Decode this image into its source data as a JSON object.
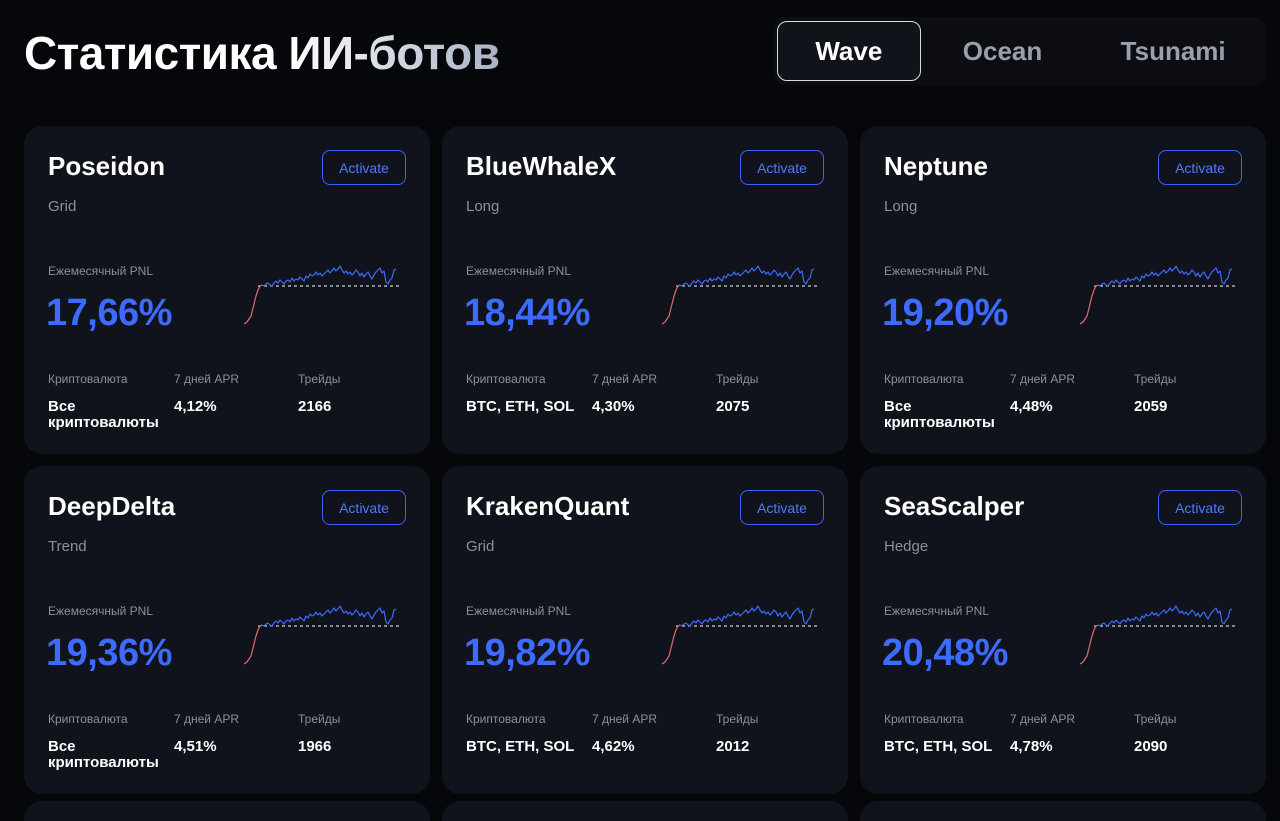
{
  "header": {
    "title": "Статистика ИИ-ботов"
  },
  "tabs": [
    {
      "label": "Wave",
      "active": true
    },
    {
      "label": "Ocean",
      "active": false
    },
    {
      "label": "Tsunami",
      "active": false
    }
  ],
  "labels": {
    "activate": "Activate",
    "pnl": "Ежемесячный PNL",
    "crypto": "Криптовалюта",
    "apr": "7 дней APR",
    "trades": "Трейды"
  },
  "colors": {
    "accent": "#3d6bff",
    "loss": "#e06b6b",
    "card": "#10131b",
    "background": "#05070b"
  },
  "bots": [
    {
      "name": "Poseidon",
      "type": "Grid",
      "pnl": "17,66%",
      "crypto": "Все криптовалюты",
      "apr": "4,12%",
      "trades": "2166"
    },
    {
      "name": "BlueWhaleX",
      "type": "Long",
      "pnl": "18,44%",
      "crypto": "BTC, ETH, SOL",
      "apr": "4,30%",
      "trades": "2075"
    },
    {
      "name": "Neptune",
      "type": "Long",
      "pnl": "19,20%",
      "crypto": "Все криптовалюты",
      "apr": "4,48%",
      "trades": "2059"
    },
    {
      "name": "DeepDelta",
      "type": "Trend",
      "pnl": "19,36%",
      "crypto": "Все криптовалюты",
      "apr": "4,51%",
      "trades": "1966"
    },
    {
      "name": "KrakenQuant",
      "type": "Grid",
      "pnl": "19,82%",
      "crypto": "BTC, ETH, SOL",
      "apr": "4,62%",
      "trades": "2012"
    },
    {
      "name": "SeaScalper",
      "type": "Hedge",
      "pnl": "20,48%",
      "crypto": "BTC, ETH, SOL",
      "apr": "4,78%",
      "trades": "2090"
    }
  ]
}
